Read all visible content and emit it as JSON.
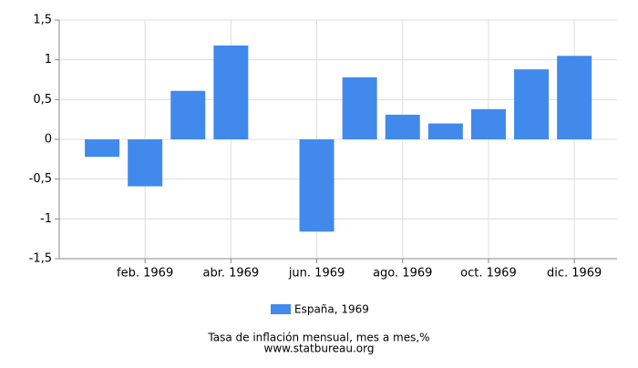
{
  "chart_data": {
    "type": "bar",
    "categories": [
      null,
      "feb. 1969",
      null,
      "abr. 1969",
      null,
      "jun. 1969",
      null,
      "ago. 1969",
      null,
      "oct. 1969",
      null,
      "dic. 1969"
    ],
    "series": [
      {
        "name": "España, 1969",
        "color": "#418aeb",
        "values": [
          -0.22,
          -0.59,
          0.61,
          1.18,
          0,
          -1.16,
          0.78,
          0.31,
          0.2,
          0.38,
          0.88,
          1.05
        ]
      }
    ],
    "ylim": [
      -1.5,
      1.5
    ],
    "yticks": [
      {
        "value": -1.5,
        "label": "-1,5"
      },
      {
        "value": -1,
        "label": "-1"
      },
      {
        "value": -0.5,
        "label": "-0,5"
      },
      0,
      {
        "value": 0.5,
        "label": "0,5"
      },
      1,
      {
        "value": 1.5,
        "label": "1,5"
      }
    ],
    "grid": true,
    "title": "Tasa de inflación mensual, mes a mes,%",
    "source": "www.statbureau.org"
  }
}
